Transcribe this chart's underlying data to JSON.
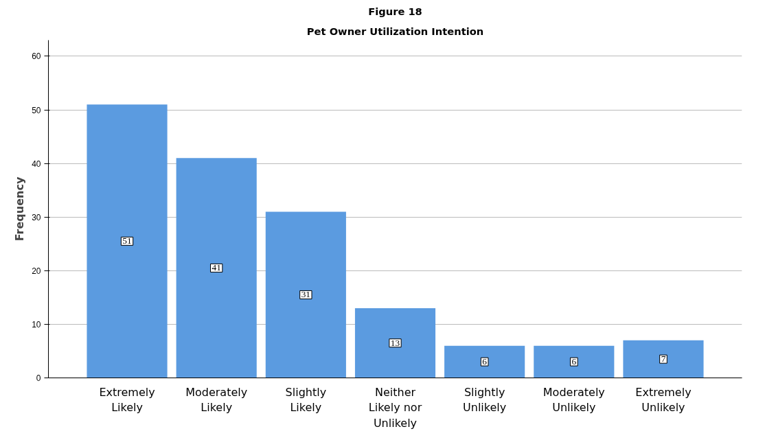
{
  "chart_data": {
    "type": "bar",
    "title": "Figure 18",
    "subtitle": "Pet Owner Utilization Intention",
    "ylabel": "Frequency",
    "categories": [
      "Extremely Likely",
      "Moderately Likely",
      "Slightly Likely",
      "Neither Likely nor Unlikely",
      "Slightly Unlikely",
      "Moderately Unlikely",
      "Extremely Unlikely"
    ],
    "values": [
      51,
      41,
      31,
      13,
      6,
      6,
      7
    ],
    "color": "#5b9be0",
    "data_labels": true,
    "ylim": [
      0,
      63
    ],
    "yticks": [
      0,
      10,
      20,
      30,
      40,
      50,
      60
    ],
    "grid": "y"
  }
}
